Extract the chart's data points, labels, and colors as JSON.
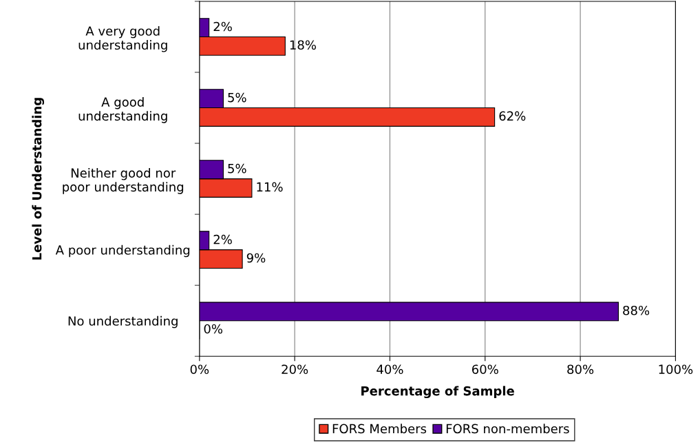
{
  "chart_data": {
    "type": "bar",
    "orientation": "horizontal",
    "xlabel": "Percentage of Sample",
    "ylabel": "Level of Understanding",
    "categories": [
      "A very good\nunderstanding",
      "A good\nunderstanding",
      "Neither good nor\npoor understanding",
      "A poor understanding",
      "No understanding"
    ],
    "series": [
      {
        "name": "FORS Members",
        "color": "#ee3a24",
        "values": [
          18,
          62,
          11,
          9,
          0
        ],
        "value_labels": [
          "18%",
          "62%",
          "11%",
          "9%",
          "0%"
        ]
      },
      {
        "name": "FORS non-members",
        "color": "#5500a0",
        "values": [
          2,
          5,
          5,
          2,
          88
        ],
        "value_labels": [
          "2%",
          "5%",
          "5%",
          "2%",
          "88%"
        ]
      }
    ],
    "xlim": [
      0,
      100
    ],
    "xticks": [
      {
        "value": 0,
        "label": "0%"
      },
      {
        "value": 20,
        "label": "20%"
      },
      {
        "value": 40,
        "label": "40%"
      },
      {
        "value": 60,
        "label": "60%"
      },
      {
        "value": 80,
        "label": "80%"
      },
      {
        "value": 100,
        "label": "100%"
      }
    ],
    "grid": "x",
    "legend": "bottom"
  }
}
